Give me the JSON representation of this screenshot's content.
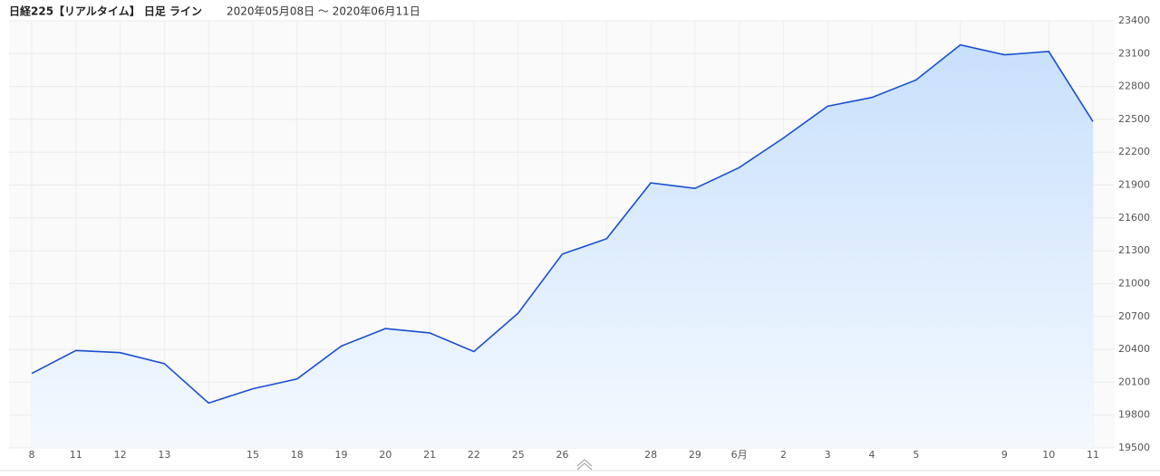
{
  "chart_data": {
    "type": "area",
    "title": "日経225【リアルタイム】 日足 ライン",
    "subtitle": "2020年05月08日 ～ 2020年06月11日",
    "categories": [
      "8",
      "11",
      "12",
      "13",
      null,
      "15",
      "18",
      "19",
      "20",
      "21",
      "22",
      "25",
      "26",
      null,
      "28",
      "29",
      "6月",
      "2",
      "3",
      "4",
      "5",
      null,
      "9",
      "10",
      "11"
    ],
    "values": [
      20180,
      20390,
      20370,
      20270,
      19910,
      20040,
      20130,
      20430,
      20590,
      20550,
      20380,
      20730,
      21270,
      21410,
      21920,
      21870,
      22060,
      22330,
      22620,
      22700,
      22860,
      23180,
      23090,
      23120,
      22480
    ],
    "color": "#1a4fcf",
    "ylim": [
      19500,
      23400
    ],
    "yticks": [
      19500,
      19800,
      20100,
      20400,
      20700,
      21000,
      21300,
      21600,
      21900,
      22200,
      22500,
      22800,
      23100,
      23400
    ],
    "grid": true
  }
}
